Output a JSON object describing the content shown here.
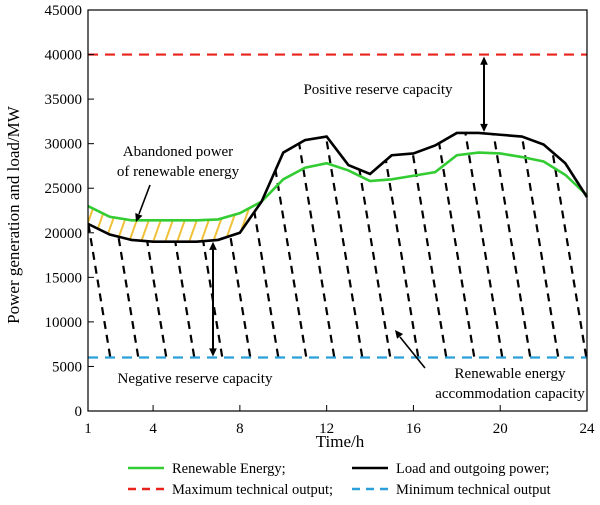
{
  "chart_data": {
    "type": "line",
    "title": "",
    "xlabel": "Time/h",
    "ylabel": "Power generation and load/MW",
    "xlim": [
      1,
      24
    ],
    "ylim": [
      0,
      45000
    ],
    "x_ticks": [
      1,
      4,
      8,
      12,
      16,
      20,
      24
    ],
    "y_ticks": [
      0,
      5000,
      10000,
      15000,
      20000,
      25000,
      30000,
      35000,
      40000,
      45000
    ],
    "grid": false,
    "legend_position": "bottom",
    "series": [
      {
        "name": "Renewable Energy;",
        "color": "#33cc33",
        "style": "solid",
        "x": [
          1,
          2,
          3,
          4,
          5,
          6,
          7,
          8,
          9,
          10,
          11,
          12,
          13,
          14,
          15,
          16,
          17,
          18,
          19,
          20,
          21,
          22,
          23,
          24
        ],
        "y": [
          23000,
          21800,
          21400,
          21400,
          21400,
          21400,
          21500,
          22200,
          23500,
          26000,
          27300,
          27800,
          27000,
          25800,
          26000,
          26400,
          26800,
          28700,
          29000,
          28900,
          28500,
          28000,
          26500,
          24200
        ]
      },
      {
        "name": "Load and outgoing power;",
        "color": "#000000",
        "style": "solid",
        "x": [
          1,
          2,
          3,
          4,
          5,
          6,
          7,
          8,
          9,
          10,
          11,
          12,
          13,
          14,
          15,
          16,
          17,
          18,
          19,
          20,
          21,
          22,
          23,
          24
        ],
        "y": [
          21000,
          19800,
          19200,
          19000,
          19000,
          19000,
          19200,
          20000,
          23500,
          29000,
          30400,
          30800,
          27600,
          26600,
          28700,
          28900,
          29800,
          31200,
          31200,
          31000,
          30800,
          29900,
          27800,
          24000
        ]
      },
      {
        "name": "Maximum technical output;",
        "color": "#e8231c",
        "style": "dashed",
        "x": [
          1,
          24
        ],
        "y": [
          40000,
          40000
        ]
      },
      {
        "name": "Minimum technical output",
        "color": "#2b9fd9",
        "style": "dashed",
        "x": [
          1,
          24
        ],
        "y": [
          6000,
          6000
        ]
      }
    ],
    "annotations": [
      {
        "id": "positive",
        "text_lines": [
          "Positive reserve capacity"
        ]
      },
      {
        "id": "abandoned",
        "text_lines": [
          "Abandoned power",
          "of renewable energy"
        ]
      },
      {
        "id": "negative",
        "text_lines": [
          "Negative reserve capacity"
        ]
      },
      {
        "id": "accommodation",
        "text_lines": [
          "Renewable energy",
          "accommodation capacity"
        ]
      }
    ],
    "hatch_colors": {
      "accommodation": "#000000",
      "abandoned": "#f0c23a"
    }
  }
}
